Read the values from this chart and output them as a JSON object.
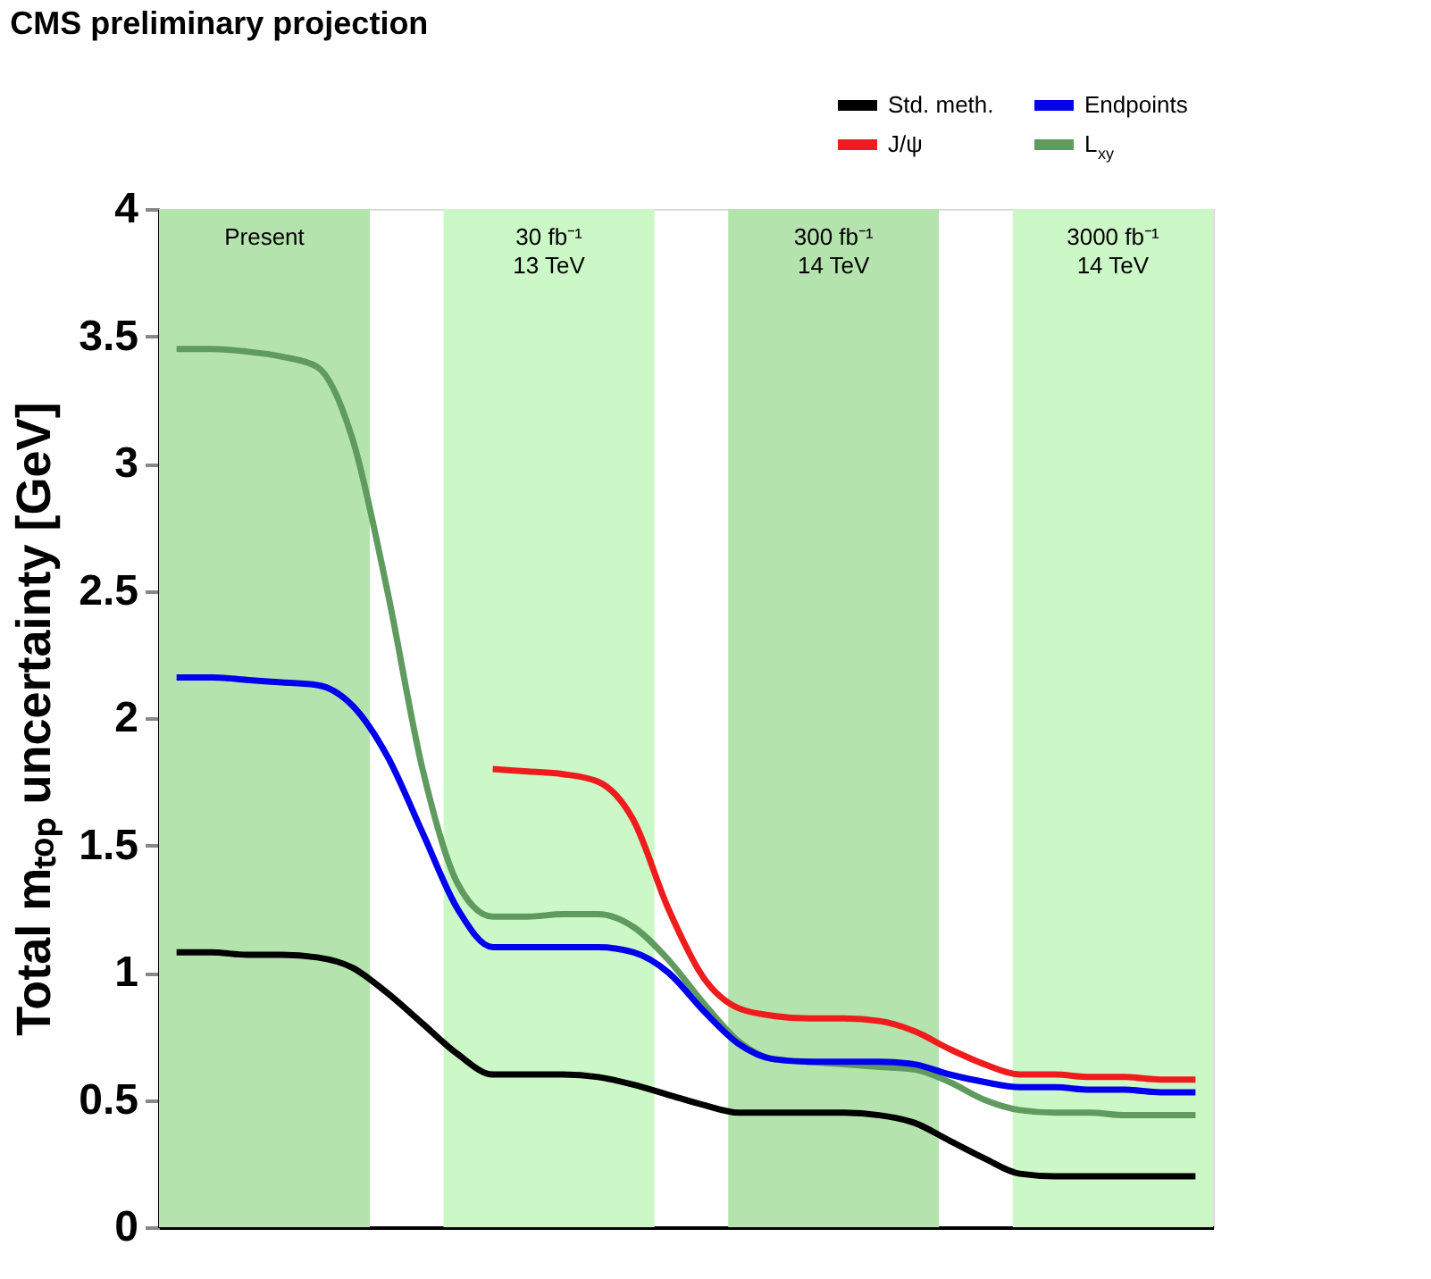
{
  "chart_data": {
    "type": "line",
    "title": "CMS preliminary projection",
    "ylabel": "Total mₜₒₚ uncertainty [GeV]",
    "categories": [
      null,
      null,
      null,
      null,
      null,
      null,
      null,
      null,
      null,
      null,
      null,
      null,
      null,
      null,
      null,
      null,
      null,
      null,
      null,
      null,
      null,
      null,
      null,
      null,
      null,
      null,
      null,
      null,
      null,
      null
    ],
    "ylim": [
      0,
      4
    ],
    "yticks": [
      0,
      0.5,
      1,
      1.5,
      2,
      2.5,
      3,
      3.5,
      4
    ],
    "tick_labels": "y",
    "grid": false,
    "legend": "top right",
    "marker": "none",
    "line_style": "solid",
    "series": [
      {
        "name": "Std. meth.",
        "color": "#000000",
        "values": [
          1.08,
          1.08,
          1.07,
          1.07,
          1.06,
          1.02,
          0.92,
          0.8,
          0.68,
          0.6,
          0.6,
          0.6,
          0.59,
          0.56,
          0.52,
          0.48,
          0.45,
          0.45,
          0.45,
          0.45,
          0.44,
          0.41,
          0.34,
          0.27,
          0.21,
          0.2,
          0.2,
          0.2,
          0.2,
          0.2
        ]
      },
      {
        "name": "Endpoints",
        "color": "#0000ee",
        "values": [
          2.16,
          2.16,
          2.15,
          2.14,
          2.13,
          2.05,
          1.85,
          1.55,
          1.25,
          1.1,
          1.1,
          1.1,
          1.1,
          1.08,
          1.0,
          0.85,
          0.72,
          0.66,
          0.65,
          0.65,
          0.65,
          0.64,
          0.6,
          0.57,
          0.55,
          0.55,
          0.54,
          0.54,
          0.53,
          0.53
        ]
      },
      {
        "name": "J/ψ",
        "color": "#ee1c1c",
        "values": [
          null,
          null,
          null,
          null,
          null,
          null,
          null,
          null,
          null,
          1.8,
          1.79,
          1.78,
          1.75,
          1.6,
          1.25,
          0.98,
          0.86,
          0.83,
          0.82,
          0.82,
          0.81,
          0.77,
          0.7,
          0.64,
          0.6,
          0.6,
          0.59,
          0.59,
          0.58,
          0.58
        ]
      },
      {
        "name": "L$_{xy}$",
        "color": "#5f9a5f",
        "values": [
          3.45,
          3.45,
          3.44,
          3.42,
          3.38,
          3.1,
          2.5,
          1.8,
          1.35,
          1.22,
          1.22,
          1.23,
          1.23,
          1.18,
          1.05,
          0.88,
          0.73,
          0.66,
          0.65,
          0.64,
          0.63,
          0.62,
          0.57,
          0.5,
          0.46,
          0.45,
          0.45,
          0.44,
          0.44,
          0.44
        ]
      }
    ],
    "annotations": [
      "Present",
      "30 fb⁻¹\n13 TeV",
      "300 fb⁻¹\n14 TeV",
      "3000 fb⁻¹\n14 TeV"
    ]
  }
}
